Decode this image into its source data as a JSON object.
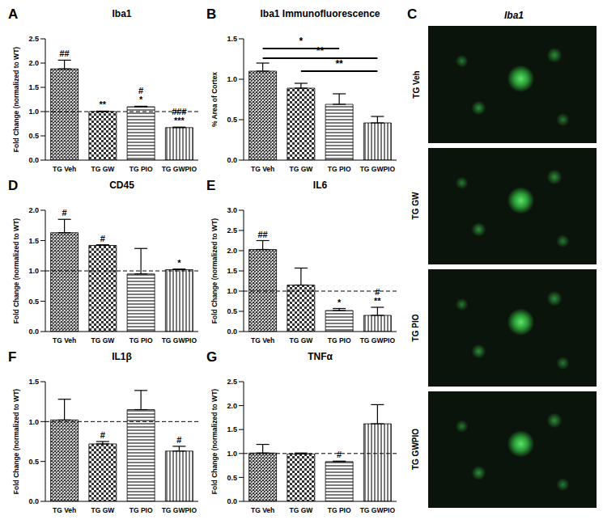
{
  "chart_data": [
    {
      "type": "bar",
      "panel": "A",
      "title": "Iba1",
      "y_label": "Fold Change (normalized to WT)",
      "color": "#333333",
      "categories": [
        "TG Veh",
        "TG GW",
        "TG PIO",
        "TG GWPIO"
      ],
      "values": [
        1.88,
        1.0,
        1.1,
        0.67
      ],
      "errors": [
        0.18,
        0.01,
        0.01,
        0.01
      ],
      "annotations": [
        [
          "##"
        ],
        [
          "**"
        ],
        [
          "#",
          "*"
        ],
        [
          "###",
          "***"
        ]
      ],
      "reference_line": 1,
      "ylim": [
        0,
        2.5
      ],
      "yticks": [
        {
          "value": 0,
          "label": "0.0"
        },
        {
          "value": 0.5,
          "label": "0.5"
        },
        {
          "value": 1,
          "label": "1.0"
        },
        {
          "value": 1.5,
          "label": "1.5"
        },
        {
          "value": 2,
          "label": "2.0"
        },
        {
          "value": 2.5,
          "label": "2.5"
        }
      ]
    },
    {
      "type": "bar",
      "panel": "B",
      "title": "Iba1 Immunofluorescence",
      "y_label": "% Area of Cortex",
      "color": "#333333",
      "categories": [
        "TG Veh",
        "TG GW",
        "TG PIO",
        "TG GWPIO"
      ],
      "values": [
        1.1,
        0.89,
        0.69,
        0.46
      ],
      "errors": [
        0.1,
        0.06,
        0.13,
        0.08
      ],
      "brackets": [
        {
          "from": "TG Veh",
          "to": "TG PIO",
          "y": 1.38,
          "label": "*"
        },
        {
          "from": "TG Veh",
          "to": "TG GWPIO",
          "y": 1.26,
          "label": "**"
        },
        {
          "from": "TG GW",
          "to": "TG GWPIO",
          "y": 1.1,
          "label": "**"
        }
      ],
      "ylim": [
        0,
        1.5
      ],
      "yticks": [
        {
          "value": 0,
          "label": "0.0"
        },
        {
          "value": 0.5,
          "label": "0.5"
        },
        {
          "value": 1,
          "label": "1.0"
        },
        {
          "value": 1.5,
          "label": "1.5"
        }
      ]
    },
    {
      "type": "image",
      "panel": "C",
      "title": "Iba1",
      "categories": [
        "TG Veh",
        "TG GW",
        "TG PIO",
        "TG GWPIO"
      ]
    },
    {
      "type": "bar",
      "panel": "D",
      "title": "CD45",
      "y_label": "Fold Change (normalized to WT)",
      "color": "#333333",
      "categories": [
        "TG Veh",
        "TG GW",
        "TG PIO",
        "TG GWPIO"
      ],
      "values": [
        1.63,
        1.42,
        0.95,
        1.02
      ],
      "errors": [
        0.22,
        0.01,
        0.42,
        0.01
      ],
      "annotations": [
        [
          "#"
        ],
        [
          "#"
        ],
        [],
        [
          "*"
        ]
      ],
      "reference_line": 1,
      "ylim": [
        0,
        2
      ],
      "yticks": [
        {
          "value": 0,
          "label": "0.0"
        },
        {
          "value": 0.5,
          "label": "0.5"
        },
        {
          "value": 1,
          "label": "1.0"
        },
        {
          "value": 1.5,
          "label": "1.5"
        },
        {
          "value": 2,
          "label": "2.0"
        }
      ]
    },
    {
      "type": "bar",
      "panel": "E",
      "title": "IL6",
      "y_label": "Fold Change (normalized to WT)",
      "color": "#333333",
      "categories": [
        "TG Veh",
        "TG GW",
        "TG PIO",
        "TG GWPIO"
      ],
      "values": [
        2.03,
        1.15,
        0.52,
        0.4
      ],
      "errors": [
        0.22,
        0.42,
        0.05,
        0.2
      ],
      "annotations": [
        [
          "##"
        ],
        [],
        [
          "*"
        ],
        [
          "#",
          "**"
        ]
      ],
      "reference_line": 1,
      "ylim": [
        0,
        3
      ],
      "yticks": [
        {
          "value": 0,
          "label": "0.0"
        },
        {
          "value": 0.5,
          "label": "0.5"
        },
        {
          "value": 1,
          "label": "1.0"
        },
        {
          "value": 1.5,
          "label": "1.5"
        },
        {
          "value": 2,
          "label": "2.0"
        },
        {
          "value": 2.5,
          "label": "2.5"
        },
        {
          "value": 3,
          "label": "3.0"
        }
      ]
    },
    {
      "type": "bar",
      "panel": "F",
      "title": "IL1β",
      "y_label": "Fold Change (normalized to WT)",
      "color": "#333333",
      "categories": [
        "TG Veh",
        "TG GW",
        "TG PIO",
        "TG GWPIO"
      ],
      "values": [
        1.02,
        0.72,
        1.15,
        0.63
      ],
      "errors": [
        0.26,
        0.03,
        0.24,
        0.06
      ],
      "annotations": [
        [],
        [
          "#"
        ],
        [],
        [
          "#"
        ]
      ],
      "reference_line": 1,
      "ylim": [
        0,
        1.5
      ],
      "yticks": [
        {
          "value": 0,
          "label": "0.0"
        },
        {
          "value": 0.5,
          "label": "0.5"
        },
        {
          "value": 1,
          "label": "1.0"
        },
        {
          "value": 1.5,
          "label": "1.5"
        }
      ]
    },
    {
      "type": "bar",
      "panel": "G",
      "title": "TNFα",
      "y_label": "Fold Change (normalized to WT)",
      "color": "#333333",
      "categories": [
        "TG Veh",
        "TG GW",
        "TG PIO",
        "TG GWPIO"
      ],
      "values": [
        1.01,
        0.99,
        0.83,
        1.62
      ],
      "errors": [
        0.18,
        0.02,
        0.01,
        0.4
      ],
      "annotations": [
        [],
        [],
        [
          "#"
        ],
        []
      ],
      "reference_line": 1,
      "ylim": [
        0,
        2.5
      ],
      "yticks": [
        {
          "value": 0,
          "label": "0.0"
        },
        {
          "value": 0.5,
          "label": "0.5"
        },
        {
          "value": 1,
          "label": "1.0"
        },
        {
          "value": 1.5,
          "label": "1.5"
        },
        {
          "value": 2,
          "label": "2.0"
        },
        {
          "value": 2.5,
          "label": "2.5"
        }
      ]
    }
  ]
}
